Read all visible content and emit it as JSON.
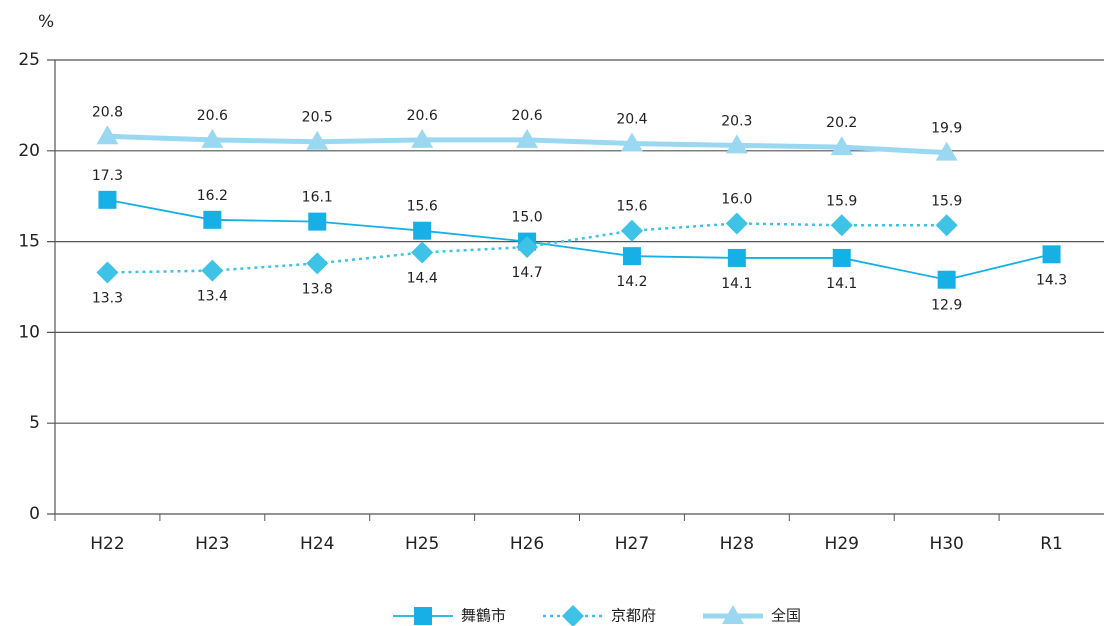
{
  "chart_data": {
    "type": "line",
    "y_label": "%",
    "categories": [
      "H22",
      "H23",
      "H24",
      "H25",
      "H26",
      "H27",
      "H28",
      "H29",
      "H30",
      "R1"
    ],
    "series": [
      {
        "name": "舞鶴市",
        "color": "#16b0e6",
        "marker": "square",
        "line_style": "solid",
        "values": [
          17.3,
          16.2,
          16.1,
          15.6,
          15.0,
          14.2,
          14.1,
          14.1,
          12.9,
          14.3
        ],
        "value_labels": [
          "17.3",
          "16.2",
          "16.1",
          "15.6",
          "15.0",
          "14.2",
          "14.1",
          "14.1",
          "12.9",
          "14.3"
        ]
      },
      {
        "name": "京都府",
        "color": "#3ec3e6",
        "marker": "diamond",
        "line_style": "dotted",
        "values": [
          13.3,
          13.4,
          13.8,
          14.4,
          14.7,
          15.6,
          16.0,
          15.9,
          15.9,
          null
        ],
        "value_labels": [
          "13.3",
          "13.4",
          "13.8",
          "14.4",
          "14.7",
          "15.6",
          "16.0",
          "15.9",
          "15.9",
          null
        ]
      },
      {
        "name": "全国",
        "color": "#9ad8f2",
        "marker": "triangle",
        "line_style": "thick",
        "values": [
          20.8,
          20.6,
          20.5,
          20.6,
          20.6,
          20.4,
          20.3,
          20.2,
          19.9,
          null
        ],
        "value_labels": [
          "20.8",
          "20.6",
          "20.5",
          "20.6",
          "20.6",
          "20.4",
          "20.3",
          "20.2",
          "19.9",
          null
        ]
      }
    ],
    "ylim": [
      0,
      25
    ],
    "yticks": [
      0,
      5,
      10,
      15,
      20,
      25
    ],
    "grid": true,
    "legend": "bottom"
  }
}
